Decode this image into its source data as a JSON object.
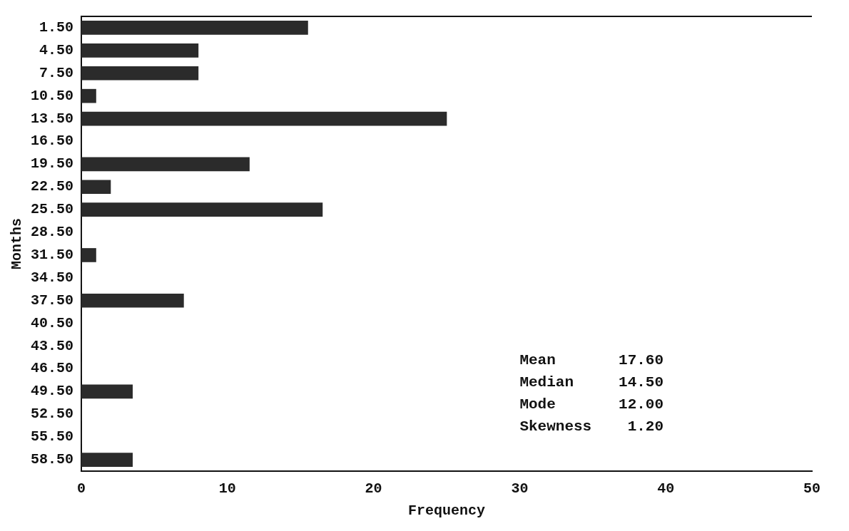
{
  "chart_data": {
    "type": "bar",
    "orientation": "horizontal",
    "xlabel": "Frequency",
    "ylabel": "Months",
    "categories": [
      "1.50",
      "4.50",
      "7.50",
      "10.50",
      "13.50",
      "16.50",
      "19.50",
      "22.50",
      "25.50",
      "28.50",
      "31.50",
      "34.50",
      "37.50",
      "40.50",
      "43.50",
      "46.50",
      "49.50",
      "52.50",
      "55.50",
      "58.50"
    ],
    "values": [
      15.5,
      8,
      8,
      1,
      25,
      0,
      11.5,
      2,
      16.5,
      0,
      1,
      0,
      7,
      0,
      0,
      0,
      3.5,
      0,
      0,
      3.5
    ],
    "color": "#2b2b2b",
    "xlim": [
      0,
      50
    ],
    "xticks": [
      0,
      10,
      20,
      30,
      40,
      50
    ],
    "grid": false,
    "annotations": [
      "Mean       17.60",
      "Median     14.50",
      "Mode       12.00",
      "Skewness    1.20"
    ]
  }
}
